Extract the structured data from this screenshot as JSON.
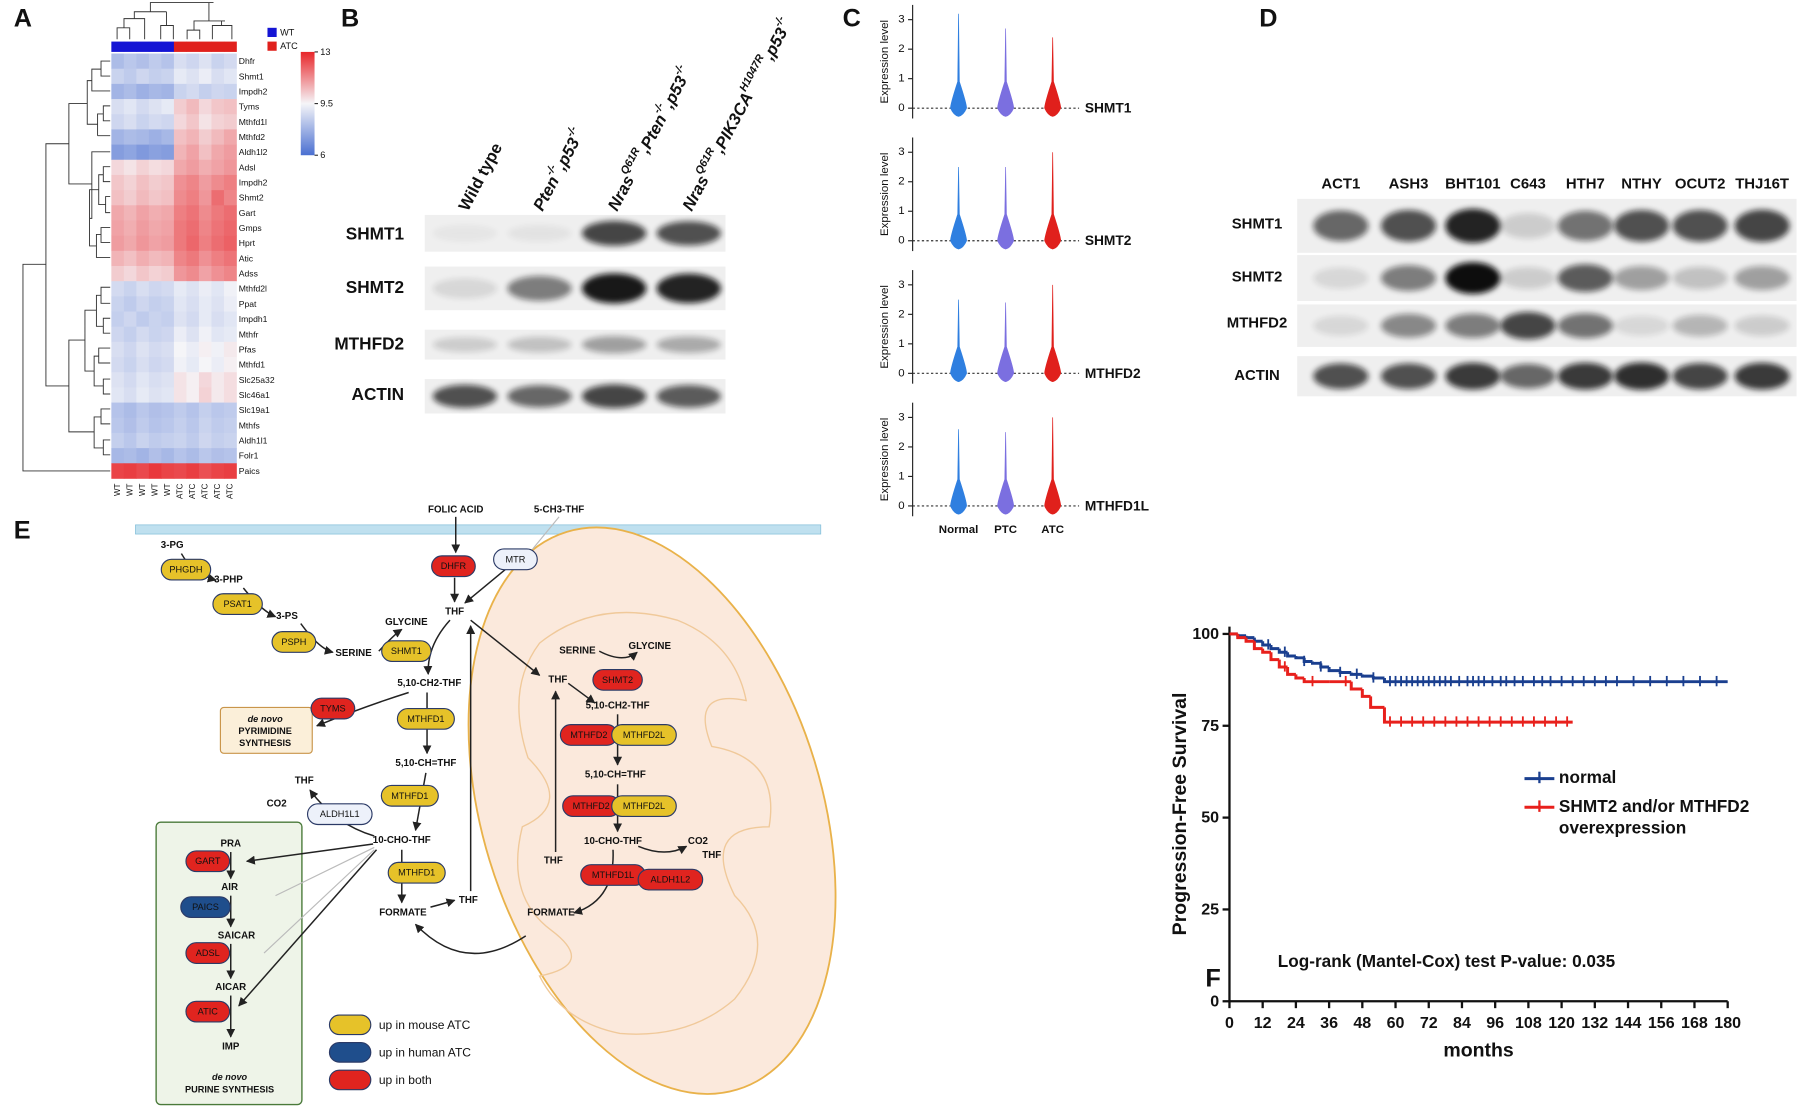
{
  "panel_labels": [
    "A",
    "B",
    "C",
    "D",
    "E",
    "F"
  ],
  "chart_data": [
    {
      "type": "heatmap",
      "rows": [
        "Dhfr",
        "Shmt1",
        "Impdh2",
        "Tyms",
        "Mthfd1l",
        "Mthfd2",
        "Aldh1l2",
        "Adsl",
        "Impdh2",
        "Shmt2",
        "Gart",
        "Gmps",
        "Hprt",
        "Atic",
        "Adss",
        "Mthfd2l",
        "Ppat",
        "Impdh1",
        "Mthfr",
        "Pfas",
        "Mthfd1",
        "Slc25a32",
        "Slc46a1",
        "Slc19a1",
        "Mthfs",
        "Aldh1l1",
        "Folr1",
        "Paics"
      ],
      "columns": [
        "WT",
        "WT",
        "WT",
        "WT",
        "WT",
        "ATC",
        "ATC",
        "ATC",
        "ATC",
        "ATC"
      ],
      "groups": [
        {
          "name": "WT",
          "color": "#1414d4"
        },
        {
          "name": "ATC",
          "color": "#e0201c"
        }
      ],
      "values": [
        [
          8.0,
          8.3,
          8.1,
          8.4,
          8.2,
          8.9,
          8.7,
          9.0,
          8.6,
          8.8
        ],
        [
          8.6,
          8.4,
          8.7,
          8.5,
          8.6,
          9.2,
          9.0,
          9.3,
          8.9,
          9.1
        ],
        [
          7.8,
          8.0,
          7.7,
          7.9,
          7.8,
          8.6,
          8.8,
          8.5,
          8.7,
          8.6
        ],
        [
          8.9,
          9.1,
          8.8,
          9.0,
          9.2,
          10.2,
          10.5,
          10.0,
          10.3,
          10.4
        ],
        [
          8.7,
          8.9,
          8.6,
          8.8,
          8.7,
          10.0,
          10.3,
          9.8,
          10.1,
          10.2
        ],
        [
          7.8,
          8.0,
          7.9,
          7.7,
          7.9,
          10.4,
          10.6,
          10.2,
          10.5,
          10.8
        ],
        [
          7.2,
          7.4,
          7.1,
          7.3,
          7.2,
          10.6,
          10.9,
          10.4,
          10.8,
          11.0
        ],
        [
          10.0,
          9.8,
          10.1,
          9.9,
          10.0,
          10.8,
          11.0,
          10.7,
          10.9,
          11.1
        ],
        [
          10.3,
          10.1,
          10.4,
          10.2,
          10.3,
          11.2,
          11.4,
          11.0,
          11.3,
          11.5
        ],
        [
          10.4,
          10.2,
          10.5,
          10.3,
          10.4,
          11.3,
          11.5,
          11.1,
          11.8,
          11.4
        ],
        [
          10.8,
          10.6,
          10.9,
          10.7,
          10.8,
          11.5,
          11.7,
          11.3,
          11.6,
          11.8
        ],
        [
          10.9,
          10.7,
          11.0,
          10.8,
          10.9,
          11.6,
          11.8,
          11.4,
          11.7,
          11.9
        ],
        [
          11.0,
          10.8,
          11.1,
          10.9,
          11.0,
          11.6,
          11.9,
          11.5,
          11.8,
          12.0
        ],
        [
          10.6,
          10.4,
          10.7,
          10.5,
          10.6,
          11.4,
          11.6,
          11.2,
          11.5,
          11.7
        ],
        [
          10.2,
          10.0,
          10.3,
          10.1,
          10.2,
          11.1,
          11.3,
          10.9,
          11.2,
          11.4
        ],
        [
          8.8,
          8.6,
          8.9,
          8.7,
          8.8,
          9.2,
          9.0,
          9.3,
          9.1,
          9.4
        ],
        [
          8.6,
          8.4,
          8.7,
          8.5,
          8.6,
          9.1,
          8.9,
          9.2,
          9.0,
          9.3
        ],
        [
          8.5,
          8.7,
          8.4,
          8.6,
          8.5,
          9.0,
          8.8,
          9.2,
          8.9,
          9.1
        ],
        [
          8.7,
          8.5,
          8.8,
          8.6,
          8.7,
          9.3,
          9.0,
          9.4,
          9.1,
          9.2
        ],
        [
          8.9,
          8.7,
          9.0,
          8.8,
          8.9,
          9.5,
          9.3,
          9.6,
          9.4,
          9.7
        ],
        [
          8.8,
          8.6,
          8.9,
          8.7,
          8.8,
          9.4,
          9.2,
          9.5,
          9.3,
          9.6
        ],
        [
          9.0,
          8.8,
          9.1,
          8.9,
          9.0,
          9.8,
          9.6,
          10.0,
          9.7,
          9.9
        ],
        [
          9.1,
          8.9,
          9.2,
          9.0,
          9.1,
          9.8,
          9.6,
          10.1,
          9.7,
          9.9
        ],
        [
          8.2,
          8.0,
          8.3,
          8.1,
          8.2,
          8.4,
          8.2,
          8.5,
          8.3,
          8.4
        ],
        [
          8.3,
          8.1,
          8.4,
          8.2,
          8.3,
          8.5,
          8.3,
          8.6,
          8.4,
          8.5
        ],
        [
          8.5,
          8.3,
          8.6,
          8.4,
          8.5,
          8.6,
          8.4,
          8.7,
          8.5,
          8.6
        ],
        [
          7.9,
          8.0,
          7.8,
          8.1,
          7.9,
          8.2,
          8.0,
          8.3,
          8.1,
          8.2
        ],
        [
          12.5,
          12.6,
          12.4,
          12.7,
          12.5,
          12.4,
          12.6,
          12.3,
          12.5,
          12.6
        ]
      ],
      "vlim": [
        6,
        13
      ],
      "vticks": [
        13,
        9.5,
        6
      ],
      "colors": [
        "#4a6fd1",
        "#f5f5f8",
        "#e8262a"
      ]
    },
    {
      "type": "violin",
      "ylabel": "Expression level",
      "categories": [
        "Normal",
        "PTC",
        "ATC"
      ],
      "colors": [
        "#2f7fe0",
        "#7b6fe0",
        "#e0201c"
      ],
      "genes": [
        {
          "name": "SHMT1",
          "max": [
            3.2,
            2.7,
            2.4
          ]
        },
        {
          "name": "SHMT2",
          "max": [
            2.5,
            2.5,
            3.0
          ]
        },
        {
          "name": "MTHFD2",
          "max": [
            2.5,
            2.4,
            3.0
          ]
        },
        {
          "name": "MTHFD1L",
          "max": [
            2.6,
            2.5,
            3.0
          ]
        }
      ],
      "ylim": [
        -0.35,
        3.5
      ],
      "yticks": [
        0,
        1,
        2,
        3
      ]
    },
    {
      "type": "line",
      "xlabel": "months",
      "ylabel": "Progression-Free Survival",
      "annotation": "Log-rank (Mantel-Cox) test P-value: 0.035",
      "xlim": [
        0,
        180
      ],
      "ylim": [
        0,
        102
      ],
      "xticks": [
        0,
        12,
        24,
        36,
        48,
        60,
        72,
        84,
        96,
        108,
        120,
        132,
        144,
        156,
        168,
        180
      ],
      "yticks": [
        0,
        25,
        50,
        75,
        100
      ],
      "series": [
        {
          "name": "normal",
          "color": "#1a3f8f",
          "x": [
            0,
            3,
            6,
            9,
            12,
            15,
            18,
            21,
            24,
            27,
            30,
            33,
            36,
            40,
            44,
            48,
            52,
            56,
            180
          ],
          "values": [
            100,
            99.5,
            99,
            98,
            97,
            96,
            95,
            94,
            93.5,
            92.5,
            92,
            91,
            90,
            89.5,
            89,
            88.5,
            88,
            87,
            87
          ],
          "censor_x": [
            14,
            20,
            27,
            33,
            40,
            46,
            52,
            58,
            60,
            62,
            64,
            66,
            68,
            70,
            72,
            74,
            76,
            78,
            80,
            83,
            86,
            88,
            90,
            92,
            95,
            98,
            100,
            103,
            106,
            110,
            113,
            116,
            120,
            124,
            128,
            132,
            136,
            140,
            146,
            152,
            158,
            164,
            170,
            176
          ]
        },
        {
          "name": "SHMT2 and/or MTHFD2 overexpression",
          "color": "#e8201c",
          "x": [
            0,
            3,
            6,
            9,
            12,
            15,
            18,
            21,
            24,
            27,
            36,
            44,
            48,
            51,
            56,
            124
          ],
          "values": [
            100,
            99,
            98,
            96,
            95,
            93,
            91,
            89,
            88,
            87,
            87,
            85,
            83,
            80,
            76,
            76
          ],
          "censor_x": [
            20,
            30,
            42,
            58,
            62,
            66,
            70,
            74,
            78,
            82,
            86,
            90,
            94,
            98,
            102,
            106,
            110,
            114,
            118,
            122
          ]
        }
      ]
    }
  ],
  "blot_b": {
    "samples": [
      [
        {
          "text": "Wild type"
        }
      ],
      [
        {
          "text": "Pten"
        },
        {
          "sup": "-/-"
        },
        {
          "text": ",p53"
        },
        {
          "sup": "-/-"
        }
      ],
      [
        {
          "text": "Nras"
        },
        {
          "sup": "Q61R"
        },
        {
          "text": ",Pten"
        },
        {
          "sup": "-/-"
        },
        {
          "text": ",p53"
        },
        {
          "sup": "-/-"
        }
      ],
      [
        {
          "text": "Nras"
        },
        {
          "sup": "Q61R"
        },
        {
          "text": ",PIK3CA"
        },
        {
          "sup": "H1047R"
        },
        {
          "text": ",p53"
        },
        {
          "sup": "-/-"
        }
      ]
    ],
    "proteins": [
      "SHMT1",
      "SHMT2",
      "MTHFD2",
      "ACTIN"
    ]
  },
  "blot_d": {
    "cell_lines": [
      "ACT1",
      "ASH3",
      "BHT101",
      "C643",
      "HTH7",
      "NTHY",
      "OCUT2",
      "THJ16T"
    ],
    "proteins": [
      "SHMT1",
      "SHMT2",
      "MTHFD2",
      "ACTIN"
    ]
  },
  "pathway": {
    "metabolites": [
      "FOLIC ACID",
      "5-CH3-THF",
      "THF",
      "3-PG",
      "3-PHP",
      "3-PS",
      "SERINE",
      "GLYCINE",
      "5,10-CH2-THF",
      "5,10-CH=THF",
      "THF",
      "CO2",
      "10-CHO-THF",
      "THF",
      "FORMATE",
      "PRA",
      "AIR",
      "SAICAR",
      "AICAR",
      "IMP",
      "SERINE",
      "GLYCINE",
      "THF",
      "5,10-CH2-THF",
      "5,10-CH=THF",
      "10-CHO-THF",
      "CO2",
      "THF",
      "THF",
      "FORMATE"
    ],
    "enzymes": [
      {
        "label": "DHFR",
        "color": "#e0241f"
      },
      {
        "label": "MTR",
        "color": "#edf1fa"
      },
      {
        "label": "PHGDH",
        "color": "#e6c229"
      },
      {
        "label": "PSAT1",
        "color": "#e6c229"
      },
      {
        "label": "PSPH",
        "color": "#e6c229"
      },
      {
        "label": "SHMT1",
        "color": "#e6c229"
      },
      {
        "label": "TYMS",
        "color": "#e0241f"
      },
      {
        "label": "MTHFD1",
        "color": "#e6c229"
      },
      {
        "label": "MTHFD1",
        "color": "#e6c229"
      },
      {
        "label": "ALDH1L1",
        "color": "#edf1fa"
      },
      {
        "label": "MTHFD1",
        "color": "#e6c229"
      },
      {
        "label": "GART",
        "color": "#e0241f"
      },
      {
        "label": "PAICS",
        "color": "#1f4e8c"
      },
      {
        "label": "ADSL",
        "color": "#e0241f"
      },
      {
        "label": "ATIC",
        "color": "#e0241f"
      },
      {
        "label": "SHMT2",
        "color": "#e0241f"
      },
      {
        "label": "MTHFD2",
        "color": "#e0241f"
      },
      {
        "label": "MTHFD2L",
        "color": "#e6c229"
      },
      {
        "label": "MTHFD2",
        "color": "#e0241f"
      },
      {
        "label": "MTHFD2L",
        "color": "#e6c229"
      },
      {
        "label": "MTHFD1L",
        "color": "#e0241f"
      },
      {
        "label": "ALDH1L2",
        "color": "#e0241f"
      }
    ],
    "pyrimidine_box": [
      "de novo",
      "PYRIMIDINE",
      "SYNTHESIS"
    ],
    "purine_box": [
      "de novo",
      "PURINE SYNTHESIS"
    ],
    "legend": [
      {
        "label": "up in mouse ATC",
        "color": "#e6c229"
      },
      {
        "label": "up in human ATC",
        "color": "#1f4e8c"
      },
      {
        "label": "up in both",
        "color": "#e0241f"
      }
    ]
  }
}
